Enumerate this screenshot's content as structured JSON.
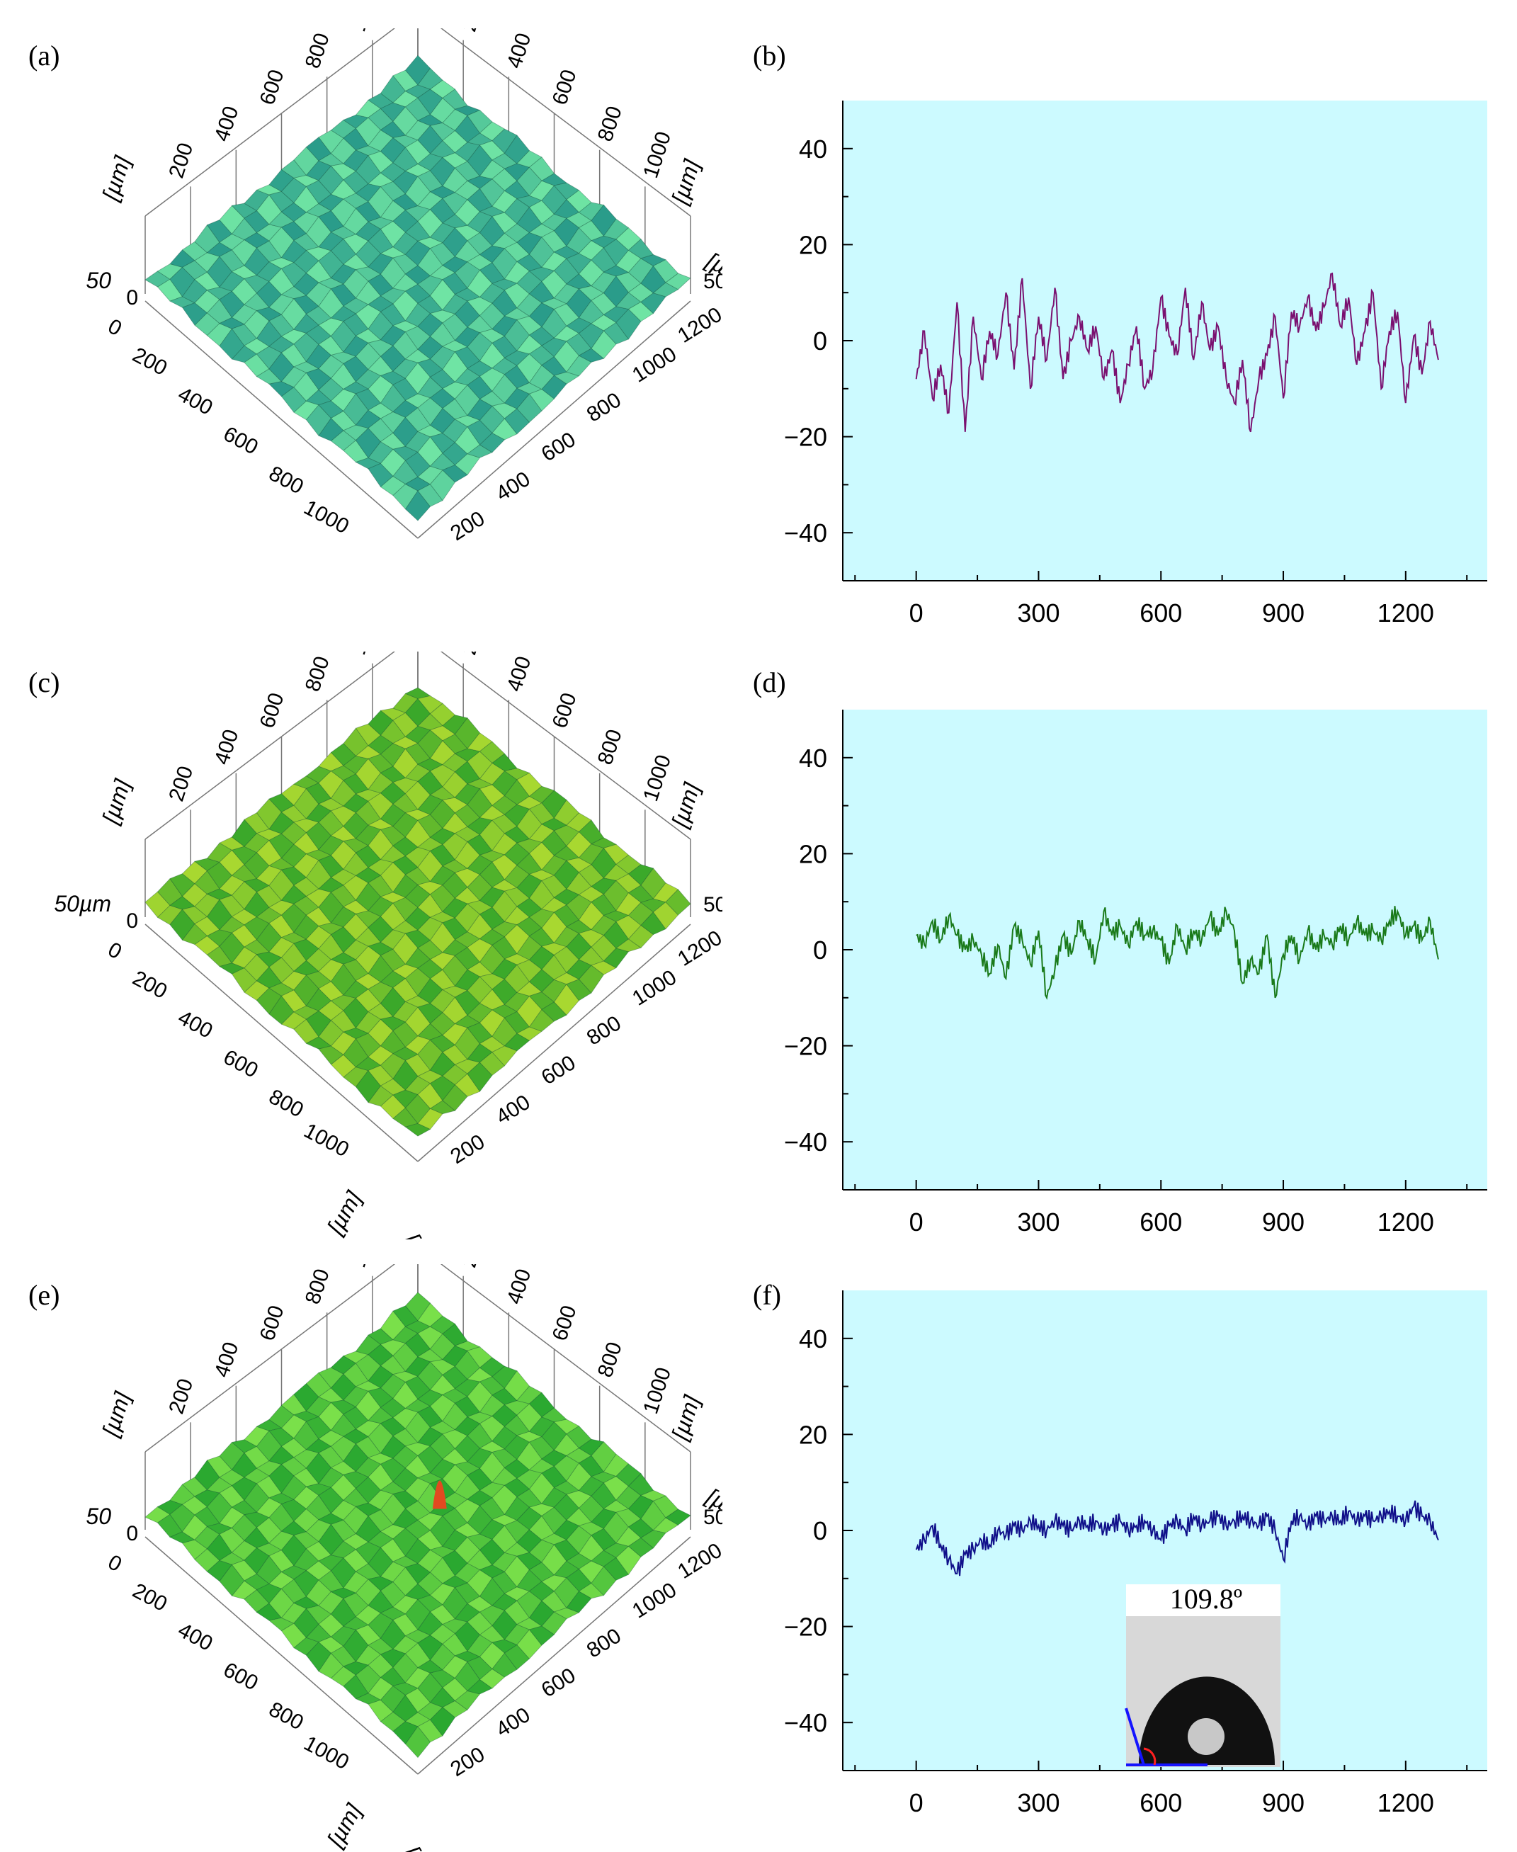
{
  "panels": {
    "a": {
      "label": "(a)"
    },
    "b": {
      "label": "(b)"
    },
    "c": {
      "label": "(c)"
    },
    "d": {
      "label": "(d)"
    },
    "e": {
      "label": "(e)"
    },
    "f": {
      "label": "(f)"
    }
  },
  "surfaces": [
    {
      "id": "a",
      "color_low": "#2a9c8a",
      "color_high": "#6fe4a4",
      "back_ticks": [
        "200",
        "400",
        "600",
        "800",
        "1000",
        "1200"
      ],
      "right_ticks": [
        "0",
        "200",
        "400",
        "600",
        "800",
        "1000"
      ],
      "front_left_ticks": [
        "0",
        "200",
        "400",
        "600",
        "800",
        "1000"
      ],
      "front_right_ticks": [
        "200",
        "400",
        "600",
        "800",
        "1000",
        "1200"
      ],
      "z_label": "50",
      "z_right_label": "50",
      "unit_left": "[µm]",
      "unit_right": "[µm]",
      "unit_z": "[µm]",
      "unit_bottom_left": "",
      "unit_bottom_right": ""
    },
    {
      "id": "c",
      "color_low": "#3aa82a",
      "color_high": "#a8d830",
      "back_ticks": [
        "200",
        "400",
        "600",
        "800",
        "1000",
        "1200"
      ],
      "right_ticks": [
        "0",
        "200",
        "400",
        "600",
        "800",
        "1000"
      ],
      "front_left_ticks": [
        "0",
        "200",
        "400",
        "600",
        "800",
        "1000"
      ],
      "front_right_ticks": [
        "200",
        "400",
        "600",
        "800",
        "1000",
        "1200"
      ],
      "z_label": "50µm",
      "z_right_label": "50µm",
      "unit_left": "[µm]",
      "unit_right": "[µm]",
      "unit_z": "",
      "unit_bottom_left": "[µm]",
      "unit_bottom_right": "[µm]"
    },
    {
      "id": "e",
      "color_low": "#2aa830",
      "color_high": "#7ae04a",
      "back_ticks": [
        "200",
        "400",
        "600",
        "800",
        "1000",
        "1200"
      ],
      "right_ticks": [
        "0",
        "200",
        "400",
        "600",
        "800",
        "1000"
      ],
      "front_left_ticks": [
        "0",
        "200",
        "400",
        "600",
        "800",
        "1000"
      ],
      "front_right_ticks": [
        "200",
        "400",
        "600",
        "800",
        "1000",
        "1200"
      ],
      "z_label": "50",
      "z_right_label": "50",
      "unit_left": "[µm]",
      "unit_right": "[µm]",
      "unit_z": "[µm]",
      "unit_bottom_left": "[µm]",
      "unit_bottom_right": "[µm]"
    }
  ],
  "chart_data": [
    {
      "id": "b",
      "type": "line",
      "title": "",
      "xlabel": "",
      "ylabel": "",
      "xlim": [
        -180,
        1400
      ],
      "ylim": [
        -50,
        50
      ],
      "xticks": [
        0,
        300,
        600,
        900,
        1200
      ],
      "xtick_labels": [
        "0",
        "300",
        "600",
        "900",
        "1200"
      ],
      "yticks": [
        -40,
        -20,
        0,
        20,
        40
      ],
      "ytick_labels": [
        "−40",
        "−20",
        "0",
        "20",
        "40"
      ],
      "background": "#ccfaff",
      "line_color": "#7a1070",
      "series": [
        {
          "x": [
            0,
            20,
            40,
            60,
            80,
            100,
            120,
            140,
            160,
            180,
            200,
            220,
            240,
            260,
            280,
            300,
            320,
            340,
            360,
            380,
            400,
            420,
            440,
            460,
            480,
            500,
            520,
            540,
            560,
            580,
            600,
            620,
            640,
            660,
            680,
            700,
            720,
            740,
            760,
            780,
            800,
            820,
            840,
            860,
            880,
            900,
            920,
            940,
            960,
            980,
            1000,
            1020,
            1040,
            1060,
            1080,
            1100,
            1120,
            1140,
            1160,
            1180,
            1200,
            1220,
            1240,
            1260,
            1280
          ],
          "y": [
            -8,
            2,
            -12,
            -5,
            -15,
            8,
            -19,
            5,
            -8,
            2,
            -3,
            10,
            -6,
            13,
            -10,
            5,
            -4,
            11,
            -8,
            0,
            5,
            -2,
            3,
            -8,
            -2,
            -13,
            -5,
            3,
            -10,
            -6,
            9,
            1,
            -3,
            11,
            -4,
            8,
            -2,
            3,
            -8,
            -13,
            -4,
            -19,
            -8,
            -3,
            5,
            -12,
            6,
            3,
            9,
            2,
            7,
            14,
            3,
            9,
            -5,
            2,
            10,
            -10,
            2,
            6,
            -13,
            1,
            -7,
            4,
            -4
          ]
        }
      ]
    },
    {
      "id": "d",
      "type": "line",
      "title": "",
      "xlabel": "",
      "ylabel": "",
      "xlim": [
        -180,
        1400
      ],
      "ylim": [
        -50,
        50
      ],
      "xticks": [
        0,
        300,
        600,
        900,
        1200
      ],
      "xtick_labels": [
        "0",
        "300",
        "600",
        "900",
        "1200"
      ],
      "yticks": [
        -40,
        -20,
        0,
        20,
        40
      ],
      "ytick_labels": [
        "−40",
        "−20",
        "0",
        "20",
        "40"
      ],
      "background": "#ccfaff",
      "line_color": "#1a7a1a",
      "series": [
        {
          "x": [
            0,
            20,
            40,
            60,
            80,
            100,
            120,
            140,
            160,
            180,
            200,
            220,
            240,
            260,
            280,
            300,
            320,
            340,
            360,
            380,
            400,
            420,
            440,
            460,
            480,
            500,
            520,
            540,
            560,
            580,
            600,
            620,
            640,
            660,
            680,
            700,
            720,
            740,
            760,
            780,
            800,
            820,
            840,
            860,
            880,
            900,
            920,
            940,
            960,
            980,
            1000,
            1020,
            1040,
            1060,
            1080,
            1100,
            1120,
            1140,
            1160,
            1180,
            1200,
            1220,
            1240,
            1260,
            1280
          ],
          "y": [
            3,
            1,
            6,
            2,
            7,
            3,
            0,
            2,
            -1,
            -5,
            1,
            -6,
            5,
            2,
            -3,
            4,
            -10,
            -4,
            3,
            -1,
            6,
            2,
            -2,
            8,
            3,
            5,
            1,
            6,
            3,
            4,
            2,
            -3,
            5,
            0,
            4,
            2,
            7,
            3,
            8,
            4,
            -7,
            -2,
            -5,
            3,
            -10,
            -1,
            3,
            -2,
            4,
            0,
            3,
            1,
            5,
            2,
            6,
            3,
            4,
            2,
            6,
            8,
            3,
            5,
            2,
            6,
            -2
          ]
        }
      ]
    },
    {
      "id": "f",
      "type": "line",
      "title": "",
      "xlabel": "",
      "ylabel": "",
      "xlim": [
        -180,
        1400
      ],
      "ylim": [
        -50,
        50
      ],
      "xticks": [
        0,
        300,
        600,
        900,
        1200
      ],
      "xtick_labels": [
        "0",
        "300",
        "600",
        "900",
        "1200"
      ],
      "yticks": [
        -40,
        -20,
        0,
        20,
        40
      ],
      "ytick_labels": [
        "−40",
        "−20",
        "0",
        "20",
        "40"
      ],
      "background": "#ccfaff",
      "line_color": "#10108a",
      "inset": {
        "angle_label": "109.8º"
      },
      "series": [
        {
          "x": [
            0,
            20,
            40,
            60,
            80,
            100,
            120,
            140,
            160,
            180,
            200,
            220,
            240,
            260,
            280,
            300,
            320,
            340,
            360,
            380,
            400,
            420,
            440,
            460,
            480,
            500,
            520,
            540,
            560,
            580,
            600,
            620,
            640,
            660,
            680,
            700,
            720,
            740,
            760,
            780,
            800,
            820,
            840,
            860,
            880,
            900,
            920,
            940,
            960,
            980,
            1000,
            1020,
            1040,
            1060,
            1080,
            1100,
            1120,
            1140,
            1160,
            1180,
            1200,
            1220,
            1240,
            1260,
            1280
          ],
          "y": [
            -4,
            -2,
            1,
            -3,
            -6,
            -9,
            -5,
            -4,
            -2,
            -3,
            0,
            -1,
            1,
            0,
            2,
            1,
            0,
            2,
            1,
            0,
            2,
            1,
            2,
            0,
            1,
            2,
            0,
            1,
            2,
            0,
            -2,
            1,
            2,
            0,
            3,
            1,
            2,
            3,
            1,
            2,
            3,
            2,
            1,
            3,
            0,
            -6,
            2,
            3,
            1,
            3,
            2,
            3,
            2,
            4,
            2,
            3,
            2,
            3,
            4,
            3,
            2,
            5,
            3,
            2,
            -2
          ]
        }
      ]
    }
  ]
}
